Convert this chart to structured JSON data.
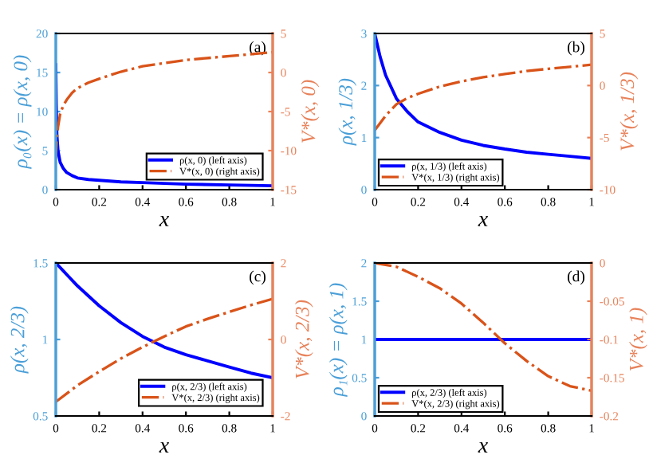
{
  "chart_data": [
    {
      "type": "line",
      "xlabel": "x",
      "ylabel": "ρ₀(x) = ρ(x, 0)",
      "y2label": "V*(x, 0)",
      "annotations": [
        "(a)"
      ],
      "legend": "bottom right",
      "grid": false,
      "xlim": [
        0,
        1
      ],
      "xticks": [
        0,
        0.2,
        0.4,
        0.6,
        0.8,
        1
      ],
      "ylim": [
        0,
        20
      ],
      "yticks": [
        0,
        5,
        10,
        15,
        20
      ],
      "y2lim": [
        -15,
        5
      ],
      "y2ticks": [
        -15,
        -10,
        -5,
        0,
        5
      ],
      "series": [
        {
          "name": "ρ(x, 0) (left axis)",
          "color": "#0000ff",
          "line_style": "solid",
          "x": [
            0,
            0.002,
            0.005,
            0.01,
            0.02,
            0.035,
            0.05,
            0.075,
            0.1,
            0.15,
            0.2,
            0.3,
            0.4,
            0.5,
            0.6,
            0.8,
            1
          ],
          "values": [
            16,
            11,
            7,
            5,
            3.5,
            2.7,
            2.2,
            1.8,
            1.5,
            1.3,
            1.2,
            1.0,
            0.9,
            0.8,
            0.7,
            0.6,
            0.5
          ]
        },
        {
          "name": "V*(x, 0) (right axis)",
          "color": "#d95319",
          "line_style": "dashed",
          "axis": "y2",
          "x": [
            0,
            0.005,
            0.01,
            0.02,
            0.035,
            0.05,
            0.075,
            0.1,
            0.15,
            0.2,
            0.3,
            0.4,
            0.5,
            0.6,
            0.8,
            1
          ],
          "values": [
            -11,
            -8.5,
            -7,
            -5.3,
            -4.2,
            -3.5,
            -2.6,
            -2,
            -1.3,
            -0.8,
            0.1,
            0.8,
            1.2,
            1.6,
            2.1,
            2.6
          ]
        }
      ]
    },
    {
      "type": "line",
      "xlabel": "x",
      "ylabel": "ρ(x, 1/3)",
      "y2label": "V*(x, 1/3)",
      "annotations": [
        "(b)"
      ],
      "legend": "bottom left",
      "grid": false,
      "xlim": [
        0,
        1
      ],
      "xticks": [
        0,
        0.2,
        0.4,
        0.6,
        0.8,
        1
      ],
      "ylim": [
        0,
        3
      ],
      "yticks": [
        0,
        1,
        2,
        3
      ],
      "y2lim": [
        -10,
        5
      ],
      "y2ticks": [
        -10,
        -5,
        0,
        5
      ],
      "series": [
        {
          "name": "ρ(x, 1/3) (left axis)",
          "color": "#0000ff",
          "line_style": "solid",
          "x": [
            0,
            0.025,
            0.05,
            0.1,
            0.15,
            0.2,
            0.3,
            0.4,
            0.5,
            0.6,
            0.7,
            0.8,
            0.9,
            1
          ],
          "values": [
            3,
            2.55,
            2.2,
            1.75,
            1.5,
            1.3,
            1.1,
            0.95,
            0.85,
            0.78,
            0.72,
            0.68,
            0.64,
            0.6
          ]
        },
        {
          "name": "V*(x, 1/3) (right axis)",
          "color": "#d95319",
          "line_style": "dashed",
          "axis": "y2",
          "x": [
            0,
            0.05,
            0.1,
            0.15,
            0.2,
            0.3,
            0.4,
            0.5,
            0.6,
            0.7,
            0.8,
            0.9,
            1
          ],
          "values": [
            -4.3,
            -2.9,
            -1.8,
            -1.2,
            -0.8,
            -0.1,
            0.4,
            0.8,
            1.1,
            1.4,
            1.6,
            1.8,
            2.0
          ]
        }
      ]
    },
    {
      "type": "line",
      "xlabel": "x",
      "ylabel": "ρ(x, 2/3)",
      "y2label": "V*(x, 2/3)",
      "annotations": [
        "(c)"
      ],
      "legend": "bottom right",
      "grid": false,
      "xlim": [
        0,
        1
      ],
      "xticks": [
        0,
        0.2,
        0.4,
        0.6,
        0.8,
        1
      ],
      "ylim": [
        0.5,
        1.5
      ],
      "yticks": [
        0.5,
        1,
        1.5
      ],
      "y2lim": [
        -2,
        2
      ],
      "y2ticks": [
        -2,
        0,
        2
      ],
      "series": [
        {
          "name": "ρ(x, 2/3) (left axis)",
          "color": "#0000ff",
          "line_style": "solid",
          "x": [
            0,
            0.1,
            0.2,
            0.3,
            0.4,
            0.5,
            0.6,
            0.7,
            0.8,
            0.9,
            1
          ],
          "values": [
            1.5,
            1.35,
            1.22,
            1.11,
            1.02,
            0.95,
            0.9,
            0.86,
            0.82,
            0.78,
            0.75
          ]
        },
        {
          "name": "V*(x, 2/3) (right axis)",
          "color": "#d95319",
          "line_style": "dashed",
          "axis": "y2",
          "x": [
            0,
            0.1,
            0.2,
            0.3,
            0.4,
            0.5,
            0.6,
            0.7,
            0.8,
            0.9,
            1
          ],
          "values": [
            -1.63,
            -1.2,
            -0.84,
            -0.5,
            -0.2,
            0.08,
            0.34,
            0.54,
            0.72,
            0.9,
            1.06
          ]
        }
      ]
    },
    {
      "type": "line",
      "xlabel": "x",
      "ylabel": "ρ₁(x) = ρ(x, 1)",
      "y2label": "V*(x, 1)",
      "annotations": [
        "(d)"
      ],
      "legend": "bottom left",
      "grid": false,
      "xlim": [
        0,
        1
      ],
      "xticks": [
        0,
        0.2,
        0.4,
        0.6,
        0.8,
        1
      ],
      "ylim": [
        0,
        2
      ],
      "yticks": [
        0,
        0.5,
        1,
        1.5,
        2
      ],
      "y2lim": [
        -0.2,
        0
      ],
      "y2ticks": [
        -0.2,
        -0.15,
        -0.1,
        -0.05,
        0
      ],
      "series": [
        {
          "name": "ρ(x, 2/3) (left axis)",
          "color": "#0000ff",
          "line_style": "solid",
          "x": [
            0,
            1
          ],
          "values": [
            1,
            1
          ]
        },
        {
          "name": "V*(x, 2/3) (right axis)",
          "color": "#d95319",
          "line_style": "dashed",
          "axis": "y2",
          "x": [
            0,
            0.1,
            0.2,
            0.3,
            0.4,
            0.5,
            0.6,
            0.7,
            0.8,
            0.9,
            1
          ],
          "values": [
            0,
            -0.005,
            -0.018,
            -0.033,
            -0.053,
            -0.078,
            -0.105,
            -0.128,
            -0.148,
            -0.161,
            -0.167
          ]
        }
      ]
    }
  ]
}
